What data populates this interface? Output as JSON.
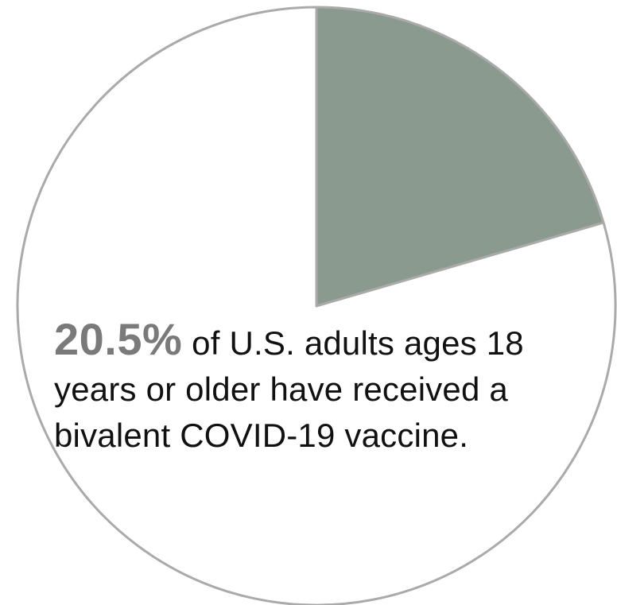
{
  "chart_data": {
    "type": "pie",
    "title": "",
    "slices": [
      {
        "label": "Received a bivalent COVID-19 vaccine",
        "value": 20.5,
        "color": "#8a9a8e"
      },
      {
        "label": "",
        "value": 79.5,
        "color": "#ffffff"
      }
    ],
    "start_angle_deg": 0,
    "direction": "clockwise",
    "outline_color": "#aaaaaa"
  },
  "annotation": {
    "value_text": "20.5%",
    "text": " of U.S. adults ages 18 years or older have received a bivalent COVID-19 vaccine."
  }
}
